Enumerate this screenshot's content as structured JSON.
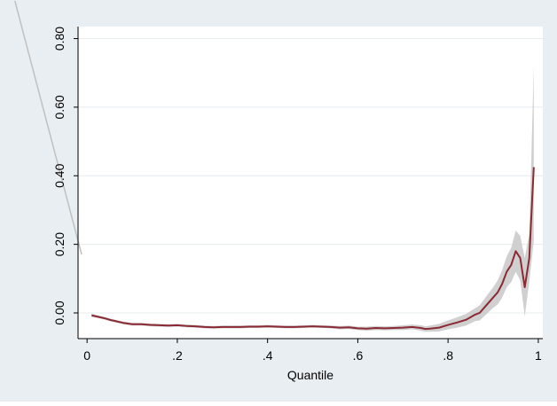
{
  "chart_data": {
    "type": "line",
    "title": "",
    "xlabel": "Quantile",
    "ylabel": "",
    "xlim": [
      -0.02,
      1.01
    ],
    "ylim": [
      -0.075,
      0.835
    ],
    "x_ticks": [
      {
        "value": 0,
        "label": "0"
      },
      {
        "value": 0.2,
        "label": ".2"
      },
      {
        "value": 0.4,
        "label": ".4"
      },
      {
        "value": 0.6,
        "label": ".6"
      },
      {
        "value": 0.8,
        "label": ".8"
      },
      {
        "value": 1,
        "label": "1"
      }
    ],
    "y_ticks": [
      {
        "value": 0,
        "label": "0.00"
      },
      {
        "value": 0.2,
        "label": "0.20"
      },
      {
        "value": 0.4,
        "label": "0.40"
      },
      {
        "value": 0.6,
        "label": "0.60"
      },
      {
        "value": 0.8,
        "label": "0.80"
      }
    ],
    "grid": true,
    "colors": {
      "background": "#e8eef2",
      "plot_area": "#ffffff",
      "line": "#8b2a35",
      "band": "#c8c8c8",
      "grid": "#e6ecef",
      "stray_line": "#c0c0c0"
    },
    "series": [
      {
        "x": [
          0.01,
          0.02,
          0.03,
          0.04,
          0.05,
          0.06,
          0.07,
          0.08,
          0.09,
          0.1,
          0.12,
          0.14,
          0.16,
          0.18,
          0.2,
          0.22,
          0.24,
          0.26,
          0.28,
          0.3,
          0.32,
          0.34,
          0.36,
          0.38,
          0.4,
          0.42,
          0.44,
          0.46,
          0.48,
          0.5,
          0.52,
          0.54,
          0.56,
          0.58,
          0.6,
          0.62,
          0.64,
          0.66,
          0.68,
          0.7,
          0.72,
          0.74,
          0.75,
          0.76,
          0.78,
          0.8,
          0.82,
          0.84,
          0.86,
          0.87,
          0.88,
          0.9,
          0.91,
          0.92,
          0.93,
          0.94,
          0.95,
          0.96,
          0.97,
          0.98,
          0.99
        ],
        "y": [
          -0.007,
          -0.01,
          -0.013,
          -0.016,
          -0.02,
          -0.023,
          -0.026,
          -0.029,
          -0.031,
          -0.033,
          -0.033,
          -0.035,
          -0.036,
          -0.037,
          -0.036,
          -0.038,
          -0.039,
          -0.041,
          -0.042,
          -0.041,
          -0.041,
          -0.041,
          -0.04,
          -0.04,
          -0.039,
          -0.04,
          -0.041,
          -0.041,
          -0.04,
          -0.039,
          -0.04,
          -0.041,
          -0.043,
          -0.042,
          -0.045,
          -0.046,
          -0.044,
          -0.045,
          -0.044,
          -0.043,
          -0.041,
          -0.044,
          -0.047,
          -0.046,
          -0.043,
          -0.035,
          -0.028,
          -0.02,
          -0.005,
          0.0,
          0.015,
          0.045,
          0.06,
          0.085,
          0.12,
          0.14,
          0.18,
          0.16,
          0.075,
          0.16,
          0.425
        ],
        "lower": [
          -0.012,
          -0.014,
          -0.017,
          -0.02,
          -0.024,
          -0.027,
          -0.03,
          -0.033,
          -0.035,
          -0.037,
          -0.037,
          -0.039,
          -0.04,
          -0.041,
          -0.04,
          -0.042,
          -0.043,
          -0.045,
          -0.046,
          -0.045,
          -0.045,
          -0.045,
          -0.044,
          -0.044,
          -0.043,
          -0.044,
          -0.045,
          -0.045,
          -0.044,
          -0.043,
          -0.044,
          -0.045,
          -0.048,
          -0.047,
          -0.05,
          -0.052,
          -0.05,
          -0.051,
          -0.05,
          -0.05,
          -0.048,
          -0.052,
          -0.055,
          -0.055,
          -0.054,
          -0.048,
          -0.043,
          -0.037,
          -0.024,
          -0.022,
          -0.01,
          0.015,
          0.025,
          0.045,
          0.075,
          0.09,
          0.12,
          0.095,
          -0.01,
          0.09,
          0.21
        ],
        "upper": [
          -0.002,
          -0.006,
          -0.009,
          -0.012,
          -0.016,
          -0.019,
          -0.022,
          -0.025,
          -0.027,
          -0.029,
          -0.029,
          -0.031,
          -0.032,
          -0.033,
          -0.032,
          -0.034,
          -0.035,
          -0.037,
          -0.038,
          -0.037,
          -0.037,
          -0.037,
          -0.036,
          -0.036,
          -0.035,
          -0.036,
          -0.037,
          -0.037,
          -0.036,
          -0.035,
          -0.036,
          -0.037,
          -0.038,
          -0.037,
          -0.04,
          -0.04,
          -0.038,
          -0.039,
          -0.038,
          -0.036,
          -0.034,
          -0.036,
          -0.039,
          -0.037,
          -0.032,
          -0.022,
          -0.013,
          -0.003,
          0.014,
          0.022,
          0.04,
          0.075,
          0.095,
          0.125,
          0.165,
          0.19,
          0.24,
          0.225,
          0.16,
          0.23,
          0.72
        ]
      }
    ],
    "stray_line": {
      "x": [
        -0.16,
        -0.012
      ],
      "y": [
        0.91,
        0.17
      ]
    }
  }
}
